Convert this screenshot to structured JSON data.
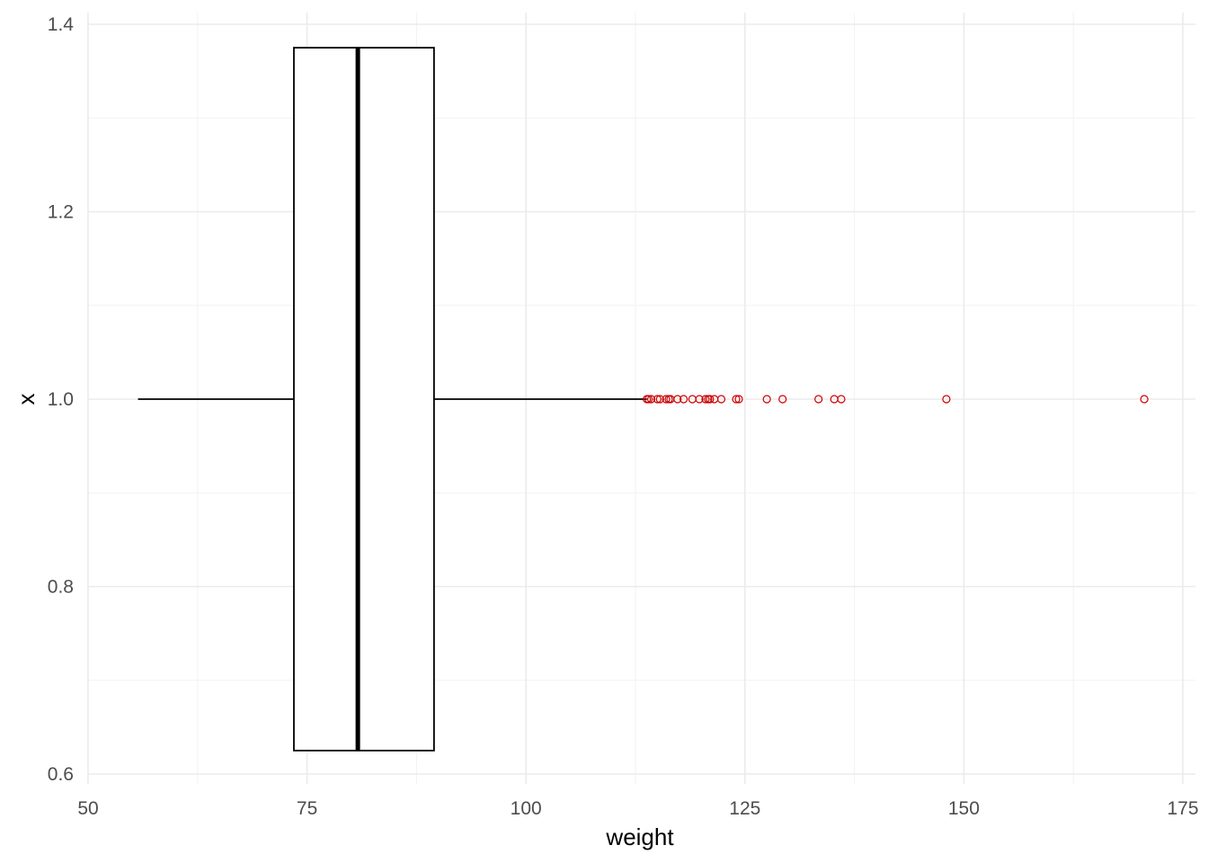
{
  "chart_data": {
    "type": "boxplot",
    "orientation": "horizontal",
    "xlabel": "weight",
    "ylabel": "x",
    "xlim": [
      50,
      176
    ],
    "ylim": [
      0.6,
      1.4
    ],
    "x_ticks": [
      50,
      75,
      100,
      125,
      150,
      175
    ],
    "x_tick_labels": [
      "50",
      "75",
      "100",
      "125",
      "150",
      "175"
    ],
    "y_ticks": [
      0.6,
      0.8,
      1.0,
      1.2,
      1.4
    ],
    "y_tick_labels": [
      "0.6",
      "0.8",
      "1.0",
      "1.2",
      "1.4"
    ],
    "grid": true,
    "box": {
      "y": 1.0,
      "y_min": 0.625,
      "y_max": 1.375,
      "whisker_low": 55.7,
      "q1": 73.5,
      "median": 80.8,
      "q3": 89.5,
      "whisker_high": 113.8
    },
    "outliers": [
      113.8,
      114.0,
      114.3,
      115.0,
      115.3,
      116.0,
      116.3,
      116.5,
      117.3,
      118.0,
      119.0,
      119.8,
      120.5,
      120.8,
      121.0,
      121.5,
      122.3,
      124.0,
      124.3,
      127.5,
      129.3,
      133.4,
      135.2,
      136.0,
      148.0,
      170.6
    ],
    "colors": {
      "box_stroke": "#000000",
      "box_fill": "#ffffff",
      "outlier": "#cc0000",
      "grid_major": "#ebebeb",
      "grid_minor": "#f2f2f2"
    }
  }
}
